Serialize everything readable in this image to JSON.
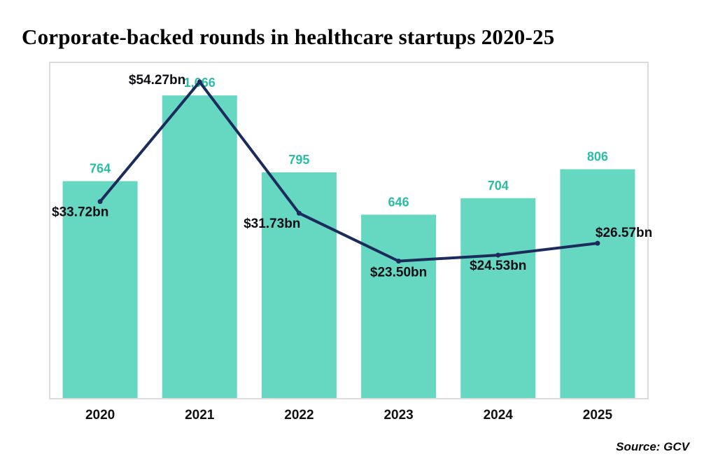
{
  "page": {
    "title": "Corporate-backed rounds in healthcare startups 2020-25",
    "source": "Source: GCV"
  },
  "chart_data": {
    "type": "bar",
    "subtype": "bar-with-line-overlay",
    "title": "Corporate-backed rounds in healthcare startups 2020-25",
    "xlabel": "",
    "ylabel": "",
    "categories": [
      "2020",
      "2021",
      "2022",
      "2023",
      "2024",
      "2025"
    ],
    "series": [
      {
        "name": "number-of-rounds",
        "type": "bar",
        "values": [
          764,
          1066,
          795,
          646,
          704,
          806
        ],
        "labels": [
          "764",
          "1,066",
          "795",
          "646",
          "704",
          "806"
        ],
        "color": "#66d7c0",
        "label_color": "#2abda3",
        "axis_max": 1180
      },
      {
        "name": "round-value-bn",
        "type": "line",
        "values": [
          33.72,
          54.27,
          31.73,
          23.5,
          24.53,
          26.57
        ],
        "labels": [
          "$33.72bn",
          "$54.27bn",
          "$31.73bn",
          "$23.50bn",
          "$24.53bn",
          "$26.57bn"
        ],
        "color": "#1b2b5c",
        "label_color": "#0e0e16",
        "axis_max": 57.5
      }
    ],
    "legend": "none",
    "grid": false,
    "axis_ticks_visible": false,
    "plot_border_color": "#dcdcdc",
    "category_label_color": "#111111",
    "source": "Source: GCV"
  }
}
